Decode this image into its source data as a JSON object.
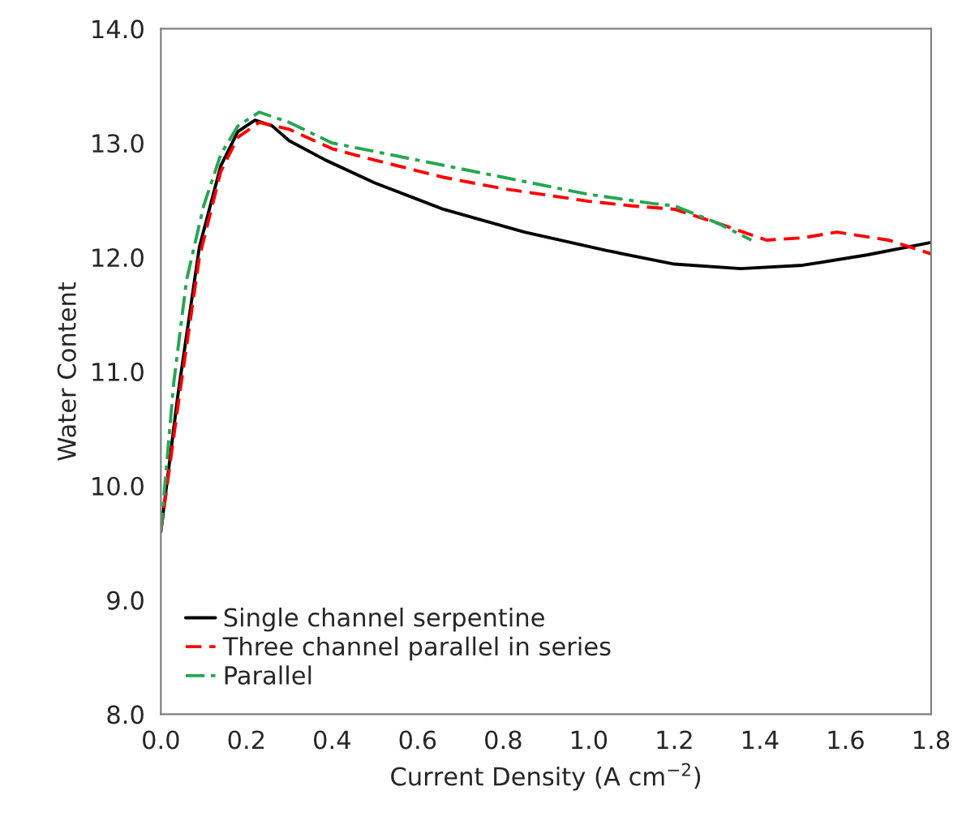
{
  "chart_data": {
    "type": "line",
    "xlabel": "Current Density (A cm$^{−2}$)",
    "ylabel": "Water Content",
    "xlim": [
      0,
      1.8
    ],
    "xticks": [
      {
        "value": 0,
        "label": "0.0"
      },
      0.2,
      0.4,
      0.6,
      0.8,
      {
        "value": 1,
        "label": "1.0"
      },
      1.2,
      1.4,
      1.6,
      1.8
    ],
    "ylim": [
      8,
      14
    ],
    "yticks": [
      {
        "value": 8,
        "label": "8.0"
      },
      {
        "value": 9,
        "label": "9.0"
      },
      {
        "value": 10,
        "label": "10.0"
      },
      {
        "value": 11,
        "label": "11.0"
      },
      {
        "value": 12,
        "label": "12.0"
      },
      {
        "value": 13,
        "label": "13.0"
      },
      {
        "value": 14,
        "label": "14.0"
      }
    ],
    "grid": false,
    "legend": "bottom left",
    "series": [
      {
        "name": "Single channel serpentine",
        "color": "#000000",
        "line_style": "solid",
        "x": [
          0,
          0.04,
          0.09,
          0.14,
          0.18,
          0.22,
          0.26,
          0.3,
          0.385,
          0.5,
          0.66,
          0.85,
          1.04,
          1.2,
          1.355,
          1.5,
          1.65,
          1.8
        ],
        "values": [
          9.6,
          10.8,
          12.09,
          12.8,
          13.1,
          13.2,
          13.15,
          13.02,
          12.85,
          12.65,
          12.42,
          12.22,
          12.06,
          11.94,
          11.9,
          11.93,
          12.02,
          12.13
        ]
      },
      {
        "name": "Three channel parallel in series",
        "color": "#ff0000",
        "line_style": "dashed",
        "x": [
          0,
          0.04,
          0.09,
          0.14,
          0.18,
          0.23,
          0.3,
          0.4,
          0.5,
          0.66,
          0.8,
          1.0,
          1.1,
          1.2,
          1.3,
          1.415,
          1.5,
          1.58,
          1.7,
          1.8
        ],
        "values": [
          9.6,
          10.7,
          12.0,
          12.75,
          13.05,
          13.18,
          13.12,
          12.95,
          12.85,
          12.7,
          12.6,
          12.49,
          12.45,
          12.42,
          12.3,
          12.15,
          12.17,
          12.22,
          12.15,
          12.03
        ]
      },
      {
        "name": "Parallel",
        "color": "#27a651",
        "line_style": "dashdot",
        "x": [
          0,
          0.03,
          0.06,
          0.1,
          0.14,
          0.18,
          0.23,
          0.3,
          0.4,
          0.6,
          0.8,
          1.0,
          1.15,
          1.2,
          1.3,
          1.38
        ],
        "values": [
          9.6,
          10.9,
          11.8,
          12.45,
          12.9,
          13.15,
          13.27,
          13.18,
          13.0,
          12.85,
          12.7,
          12.55,
          12.47,
          12.45,
          12.3,
          12.15
        ]
      }
    ]
  }
}
